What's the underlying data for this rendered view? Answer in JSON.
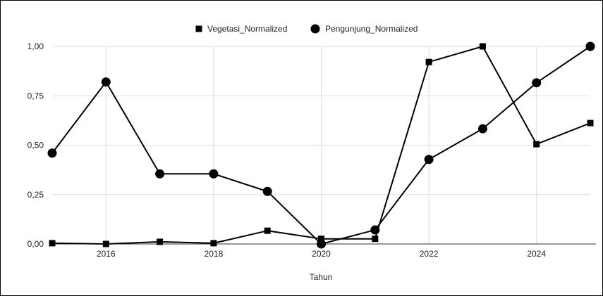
{
  "chart_data": {
    "type": "line",
    "title": "",
    "xlabel": "Tahun",
    "ylabel": "",
    "x": [
      2015,
      2016,
      2017,
      2018,
      2019,
      2020,
      2021,
      2022,
      2023,
      2024,
      2025
    ],
    "xlim": [
      2015,
      2025
    ],
    "ylim": [
      0,
      1
    ],
    "x_ticks": [
      "2016",
      "2018",
      "2020",
      "2022",
      "2024"
    ],
    "x_tick_values": [
      2016,
      2018,
      2020,
      2022,
      2024
    ],
    "y_ticks": [
      "0,00",
      "0,25",
      "0,50",
      "0,75",
      "1,00"
    ],
    "y_tick_values": [
      0,
      0.25,
      0.5,
      0.75,
      1
    ],
    "grid": true,
    "legend_position": "top",
    "series": [
      {
        "name": "Vegetasi_Normalized",
        "marker": "square",
        "color": "#000000",
        "values": [
          0.004,
          0.0,
          0.011,
          0.004,
          0.067,
          0.026,
          0.026,
          0.921,
          1.0,
          0.505,
          0.612
        ]
      },
      {
        "name": "Pengunjung_Normalized",
        "marker": "circle",
        "color": "#000000",
        "values": [
          0.46,
          0.82,
          0.355,
          0.355,
          0.266,
          0.0,
          0.071,
          0.428,
          0.583,
          0.816,
          1.0
        ]
      }
    ]
  }
}
